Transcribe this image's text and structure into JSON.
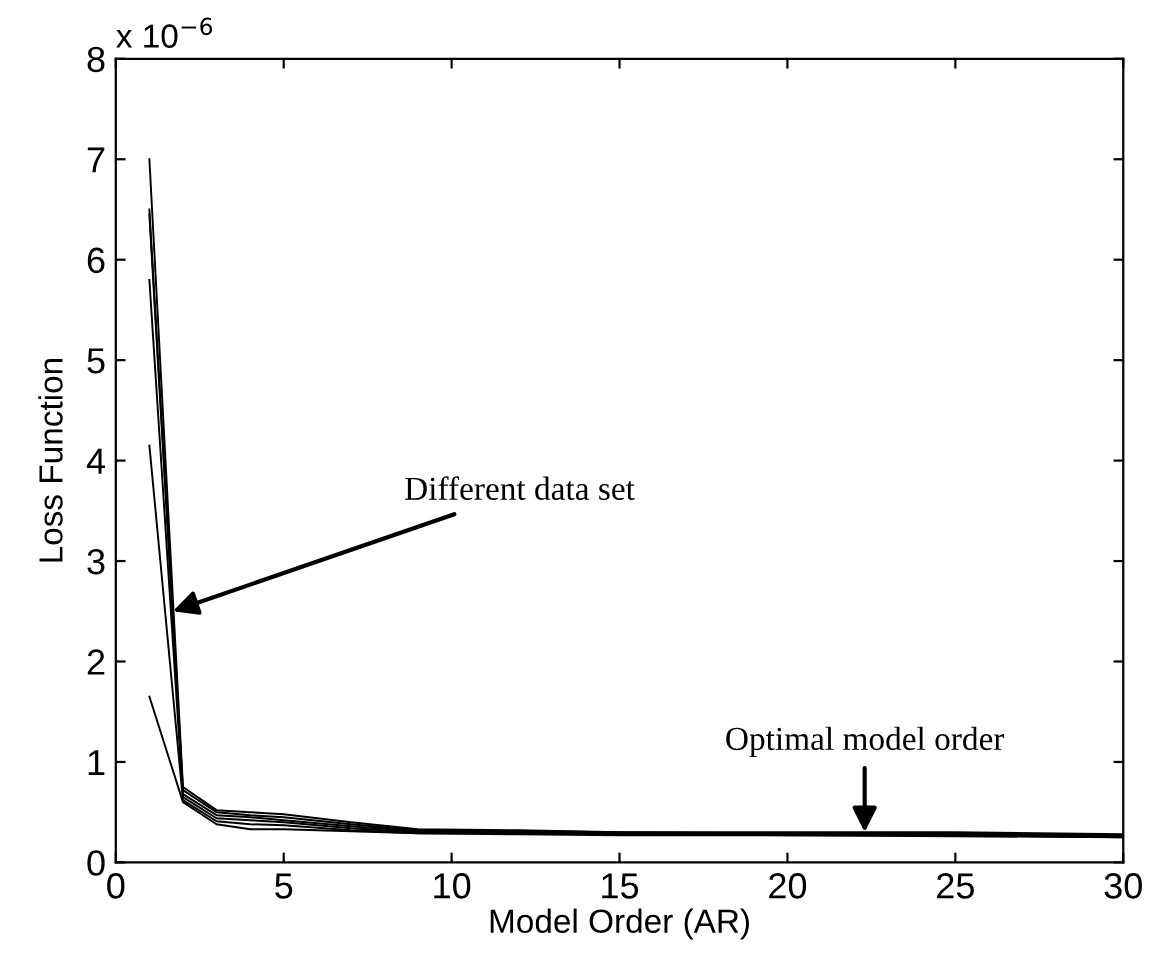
{
  "chart_data": {
    "type": "line",
    "xlabel": "Model Order (AR)",
    "ylabel": "Loss Function",
    "x": [
      1,
      2,
      3,
      4,
      5,
      7,
      9,
      12,
      15,
      20,
      25,
      30
    ],
    "xlim": [
      0,
      30
    ],
    "xticks": [
      0,
      5,
      10,
      15,
      20,
      25,
      30
    ],
    "ylim": [
      0,
      8
    ],
    "yticks": [
      0,
      1,
      2,
      3,
      4,
      5,
      6,
      7,
      8
    ],
    "grid": false,
    "legend": false,
    "marker": "none",
    "line_style": "solid",
    "series": [
      {
        "color": "#000000",
        "values": [
          7.0,
          0.75,
          0.52,
          0.5,
          0.48,
          0.4,
          0.33,
          0.32,
          0.3,
          0.3,
          0.3,
          0.28
        ]
      },
      {
        "color": "#000000",
        "values": [
          6.5,
          0.72,
          0.5,
          0.47,
          0.45,
          0.38,
          0.32,
          0.31,
          0.3,
          0.29,
          0.29,
          0.27
        ]
      },
      {
        "color": "#000000",
        "values": [
          6.45,
          0.68,
          0.47,
          0.45,
          0.42,
          0.36,
          0.31,
          0.3,
          0.29,
          0.29,
          0.28,
          0.27
        ]
      },
      {
        "color": "#000000",
        "values": [
          5.8,
          0.65,
          0.44,
          0.42,
          0.4,
          0.34,
          0.3,
          0.3,
          0.28,
          0.28,
          0.28,
          0.26
        ]
      },
      {
        "color": "#000000",
        "values": [
          4.15,
          0.62,
          0.41,
          0.38,
          0.37,
          0.32,
          0.29,
          0.29,
          0.28,
          0.27,
          0.27,
          0.25
        ]
      },
      {
        "color": "#000000",
        "values": [
          1.65,
          0.6,
          0.38,
          0.33,
          0.33,
          0.31,
          0.29,
          0.28,
          0.27,
          0.27,
          0.26,
          0.25
        ]
      }
    ],
    "annotations": [
      "x 10$^{−6}$",
      {
        "text": "Different data set",
        "x": 1.7,
        "y": 2.5
      },
      {
        "text": "Optimal model order",
        "x": 22.3,
        "y": 0.3
      }
    ]
  }
}
